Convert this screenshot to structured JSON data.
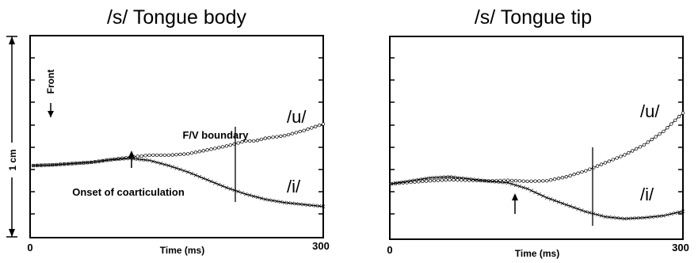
{
  "chart_data": [
    {
      "type": "line",
      "title": "/s/ Tongue body",
      "xlabel": "Time (ms)",
      "ylabel": "1 cm",
      "xlim": [
        0,
        300
      ],
      "x_tick_labels": [
        "0",
        "300"
      ],
      "direction_label": "Front",
      "grid": false,
      "series": [
        {
          "name": "/u/",
          "marker": "circle",
          "x": [
            0,
            20,
            40,
            60,
            80,
            100,
            120,
            140,
            160,
            180,
            200,
            210,
            220,
            230,
            240,
            260,
            280,
            300
          ],
          "y": [
            0.0,
            0.01,
            0.03,
            0.05,
            0.09,
            0.13,
            0.16,
            0.16,
            0.18,
            0.24,
            0.3,
            0.34,
            0.38,
            0.38,
            0.42,
            0.46,
            0.54,
            0.64
          ]
        },
        {
          "name": "/i/",
          "marker": "cross",
          "x": [
            0,
            20,
            40,
            60,
            80,
            100,
            120,
            140,
            160,
            180,
            200,
            220,
            240,
            260,
            280,
            300
          ],
          "y": [
            0.0,
            0.01,
            0.03,
            0.05,
            0.09,
            0.11,
            0.08,
            0.0,
            -0.1,
            -0.22,
            -0.34,
            -0.44,
            -0.52,
            -0.57,
            -0.6,
            -0.63
          ]
        }
      ],
      "annotations": [
        {
          "text": "F/V boundary",
          "x": 192
        },
        {
          "text": "Onset of coarticulation",
          "x": 100
        }
      ]
    },
    {
      "type": "line",
      "title": "/s/ Tongue tip",
      "xlabel": "Time (ms)",
      "xlim": [
        0,
        300
      ],
      "x_tick_labels": [
        "0",
        "300"
      ],
      "grid": false,
      "series": [
        {
          "name": "/u/",
          "marker": "circle",
          "x": [
            0,
            20,
            40,
            60,
            80,
            100,
            120,
            140,
            160,
            180,
            200,
            220,
            240,
            260,
            280,
            300
          ],
          "y": [
            0.0,
            0.03,
            0.06,
            0.08,
            0.07,
            0.06,
            0.07,
            0.05,
            0.06,
            0.14,
            0.26,
            0.42,
            0.58,
            0.78,
            1.05,
            1.42
          ]
        },
        {
          "name": "/i/",
          "marker": "cross",
          "x": [
            0,
            20,
            40,
            60,
            80,
            100,
            120,
            140,
            160,
            180,
            200,
            220,
            240,
            260,
            280,
            300
          ],
          "y": [
            0.0,
            0.06,
            0.12,
            0.14,
            0.1,
            0.05,
            0.02,
            -0.1,
            -0.28,
            -0.42,
            -0.56,
            -0.66,
            -0.7,
            -0.68,
            -0.64,
            -0.55
          ]
        }
      ],
      "annotations": [
        {
          "text": "",
          "x": 110
        },
        {
          "text": "",
          "x": 192
        }
      ]
    }
  ]
}
